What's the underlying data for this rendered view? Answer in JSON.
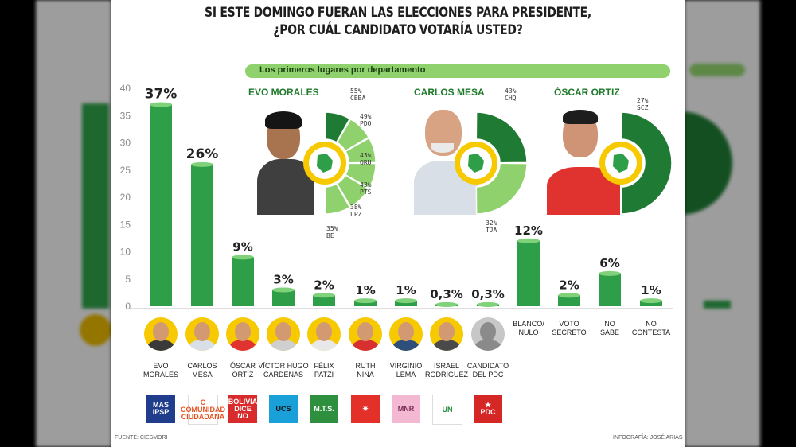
{
  "header": {
    "line1": "SI ESTE DOMINGO FUERAN LAS ELECCIONES PARA PRESIDENTE,",
    "line2": "¿POR CUÁL CANDIDATO VOTARÍA USTED?"
  },
  "subheader": "Los primeros lugares por departamento",
  "departments": [
    {
      "name": "EVO MORALES",
      "items": [
        {
          "label": "55%\nCBBA",
          "value": 55
        },
        {
          "label": "49%\nPDO",
          "value": 49
        },
        {
          "label": "43%\nORU",
          "value": 43
        },
        {
          "label": "43%\nPTS",
          "value": 43
        },
        {
          "label": "38%\nLPZ",
          "value": 38
        },
        {
          "label": "35%\nBE",
          "value": 35
        }
      ]
    },
    {
      "name": "CARLOS MESA",
      "items": [
        {
          "label": "43%\nCHQ",
          "value": 43
        },
        {
          "label": "32%\nTJA",
          "value": 32
        }
      ]
    },
    {
      "name": "ÓSCAR ORTIZ",
      "items": [
        {
          "label": "27%\nSCZ",
          "value": 27
        }
      ]
    }
  ],
  "chart_data": {
    "type": "bar",
    "ylim": [
      0,
      40
    ],
    "yticks": [
      "0",
      "5",
      "10",
      "15",
      "20",
      "25",
      "30",
      "35",
      "40"
    ],
    "categories": [
      "EVO\nMORALES",
      "CARLOS\nMESA",
      "ÓSCAR\nORTIZ",
      "VÍCTOR HUGO\nCÁRDENAS",
      "FÉLIX\nPATZI",
      "RUTH\nNINA",
      "VIRGINIO\nLEMA",
      "ISRAEL\nRODRÍGUEZ",
      "CANDIDATO\nDEL PDC",
      "BLANCO/\nNULO",
      "VOTO\nSECRETO",
      "NO\nSABE",
      "NO\nCONTESTA"
    ],
    "values": [
      37,
      26,
      9,
      3,
      2,
      1,
      1,
      0.3,
      0.3,
      12,
      2,
      6,
      1
    ],
    "value_labels": [
      "37%",
      "26%",
      "9%",
      "3%",
      "2%",
      "1%",
      "1%",
      "0,3%",
      "0,3%",
      "12%",
      "2%",
      "6%",
      "1%"
    ],
    "bar_color": "#2e9e48"
  },
  "logos": [
    {
      "text": "MAS\nIPSP",
      "bg": "#1f3d8c",
      "fg": "#ffffff"
    },
    {
      "text": "C\nCOMUNIDAD\nCIUDADANA",
      "bg": "#ffffff",
      "fg": "#e8501e"
    },
    {
      "text": "BOLIVIA\nDICE\nNO",
      "bg": "#d82b2b",
      "fg": "#ffffff"
    },
    {
      "text": "UCS",
      "bg": "#1aa0d8",
      "fg": "#111111"
    },
    {
      "text": "M.T.S.",
      "bg": "#2e8f3e",
      "fg": "#ffffff"
    },
    {
      "text": "✷",
      "bg": "#e33028",
      "fg": "#ffffff"
    },
    {
      "text": "MNR",
      "bg": "#f4b9d2",
      "fg": "#7a2a55"
    },
    {
      "text": "UN",
      "bg": "#ffffff",
      "fg": "#1c8a35"
    },
    {
      "text": "★\nPDC",
      "bg": "#d62727",
      "fg": "#ffffff"
    }
  ],
  "footer": {
    "source": "FUENTE: CIESMORI",
    "credit": "INFOGRAFÍA: JOSÉ ARIAS"
  },
  "colors": {
    "dark_green": "#1f7a33",
    "light_green": "#8fd16c",
    "avatar_bg": "#f7c900"
  }
}
